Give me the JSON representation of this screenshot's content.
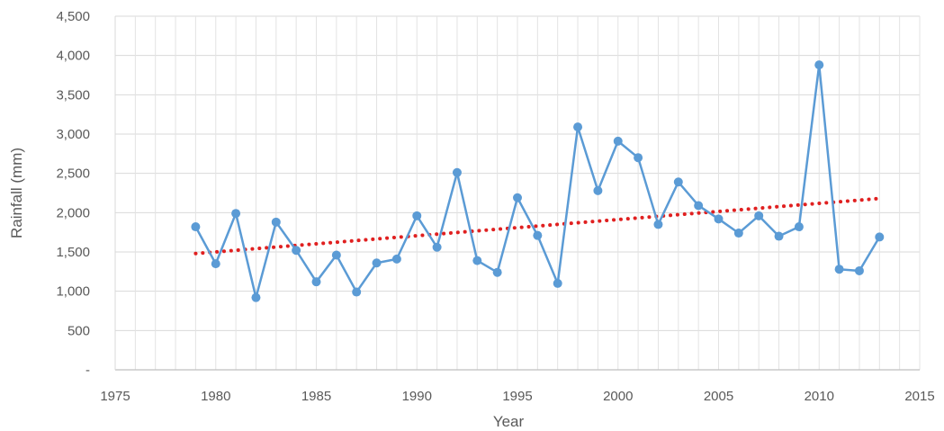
{
  "chart_data": {
    "type": "line",
    "title": "",
    "xlabel": "Year",
    "ylabel": "Rainfall (mm)",
    "xlim": [
      1975,
      2015
    ],
    "ylim": [
      0,
      4500
    ],
    "x_ticks": [
      "1975",
      "1980",
      "1985",
      "1990",
      "1995",
      "2000",
      "2005",
      "2010",
      "2015"
    ],
    "y_ticks": [
      "-",
      "500",
      "1,000",
      "1,500",
      "2,000",
      "2,500",
      "3,000",
      "3,500",
      "4,000",
      "4,500"
    ],
    "grid": true,
    "series": [
      {
        "type": "line",
        "color": "#5b9bd5",
        "x": [
          1979,
          1980,
          1981,
          1982,
          1983,
          1984,
          1985,
          1986,
          1987,
          1988,
          1989,
          1990,
          1991,
          1992,
          1993,
          1994,
          1995,
          1996,
          1997,
          1998,
          1999,
          2000,
          2001,
          2002,
          2003,
          2004,
          2005,
          2006,
          2007,
          2008,
          2009,
          2010,
          2011,
          2012,
          2013
        ],
        "y": [
          1820,
          1350,
          1990,
          920,
          1880,
          1520,
          1120,
          1460,
          990,
          1360,
          1410,
          1960,
          1560,
          2510,
          1390,
          1240,
          2190,
          1710,
          1100,
          3090,
          2280,
          2910,
          2700,
          1850,
          2390,
          2090,
          1920,
          1740,
          1960,
          1700,
          1820,
          3880,
          1280,
          1260,
          1690
        ]
      },
      {
        "type": "trendline",
        "style": "dotted",
        "color": "#e02020",
        "x": [
          1979,
          2013
        ],
        "y": [
          1480,
          2180
        ]
      }
    ]
  }
}
